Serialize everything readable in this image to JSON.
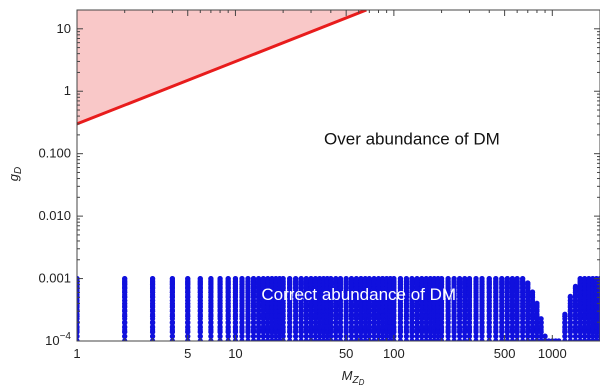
{
  "chart_data": {
    "type": "scatter",
    "title": "",
    "xlabel": "M",
    "xlabel_subscript": "Z",
    "xlabel_subsubscript": "D",
    "ylabel": "g",
    "ylabel_subscript": "D",
    "x_scale": "log",
    "y_scale": "log",
    "xlim": [
      1,
      2000
    ],
    "ylim": [
      0.0001,
      20
    ],
    "grid": false,
    "x_ticks": [
      {
        "value": 1,
        "label": "1"
      },
      {
        "value": 5,
        "label": "5"
      },
      {
        "value": 10,
        "label": "10"
      },
      {
        "value": 50,
        "label": "50"
      },
      {
        "value": 100,
        "label": "100"
      },
      {
        "value": 500,
        "label": "500"
      },
      {
        "value": 1000,
        "label": "1000"
      }
    ],
    "y_ticks": [
      {
        "value": 10,
        "label": "10"
      },
      {
        "value": 1,
        "label": "1"
      },
      {
        "value": 0.1,
        "label": "0.100"
      },
      {
        "value": 0.01,
        "label": "0.010"
      },
      {
        "value": 0.001,
        "label": "0.001"
      }
    ],
    "y_tick_power": {
      "value": 0.0001,
      "base": "10",
      "exponent": "−4"
    },
    "excluded_region": {
      "color": "#f9c8c8",
      "boundary_color": "#e81c1c",
      "boundary": [
        {
          "x": 1,
          "y": 0.3
        },
        {
          "x": 67,
          "y": 20
        }
      ]
    },
    "series": [
      {
        "color": "#1010dd",
        "marker": "dot",
        "masses": [
          1,
          2,
          3,
          4,
          5,
          6,
          7,
          8,
          9,
          10,
          11,
          12,
          13,
          14,
          15,
          16,
          17,
          18,
          19,
          20,
          22,
          24,
          26,
          28,
          30,
          32,
          34,
          36,
          38,
          40,
          43,
          46,
          50,
          54,
          58,
          62,
          66,
          70,
          75,
          80,
          85,
          90,
          95,
          100,
          110,
          120,
          130,
          140,
          150,
          160,
          170,
          180,
          190,
          200,
          220,
          240,
          260,
          280,
          300,
          330,
          360,
          400,
          440,
          480,
          520,
          560,
          600,
          650,
          700,
          750,
          800,
          850,
          900,
          950,
          1000,
          1050,
          1100,
          1200,
          1300,
          1400,
          1500,
          1600,
          1700,
          1800,
          1900,
          2000
        ],
        "couplings_max": 0.001,
        "couplings_min": 0.0001,
        "resonance_mass": 1000
      }
    ],
    "annotations": [
      {
        "text": "Over abundance of DM",
        "x": 130,
        "y": 0.14
      },
      {
        "text": "Correct abundance of DM",
        "x": 60,
        "y": 0.00045
      }
    ],
    "annotation_colors": {
      "over": "#111111",
      "correct": "#ffffff"
    }
  }
}
